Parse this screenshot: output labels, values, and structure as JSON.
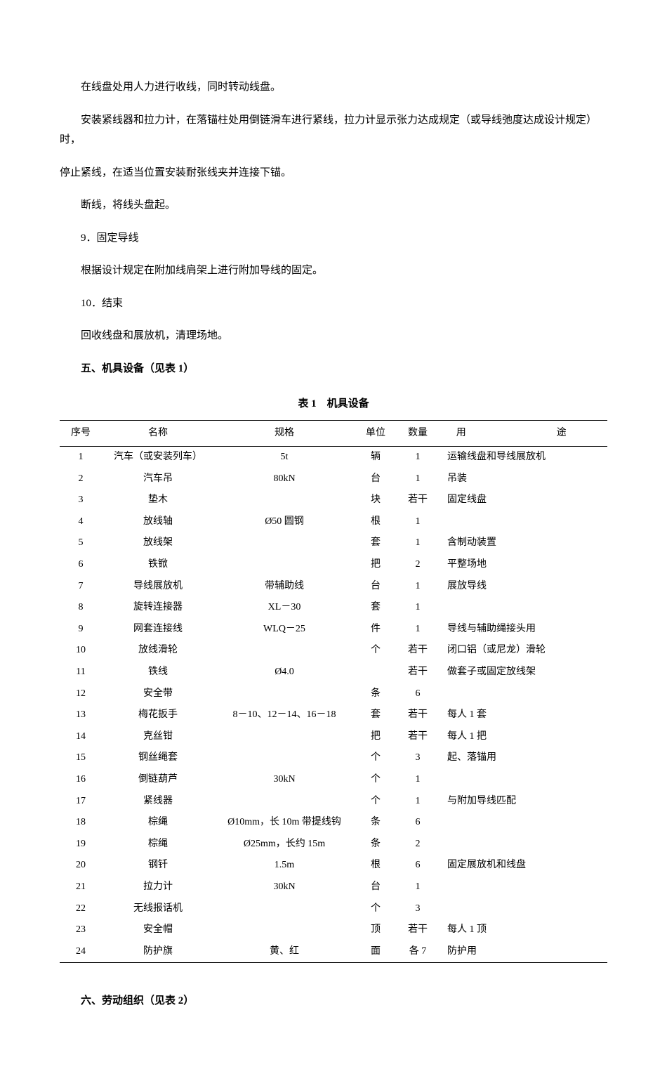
{
  "paragraphs": {
    "p1": "在线盘处用人力进行收线，同时转动线盘。",
    "p2": "安装紧线器和拉力计，在落锚柱处用倒链滑车进行紧线，拉力计显示张力达成规定（或导线弛度达成设计规定）时，",
    "p3": "停止紧线，在适当位置安装耐张线夹并连接下锚。",
    "p4": "断线，将线头盘起。",
    "p5": "9．固定导线",
    "p6": "根据设计规定在附加线肩架上进行附加导线的固定。",
    "p7": "10．结束",
    "p8": "回收线盘和展放机，清理场地。"
  },
  "section5": "五、机具设备（见表 1）",
  "table1": {
    "title": "表 1　机具设备",
    "columns": [
      "序号",
      "名称",
      "规格",
      "单位",
      "数量",
      "用途"
    ],
    "use_header_display": "用　　途",
    "rows": [
      [
        "1",
        "汽车（或安装列车）",
        "5t",
        "辆",
        "1",
        "运输线盘和导线展放机"
      ],
      [
        "2",
        "汽车吊",
        "80kN",
        "台",
        "1",
        "吊装"
      ],
      [
        "3",
        "垫木",
        "",
        "块",
        "若干",
        "固定线盘"
      ],
      [
        "4",
        "放线轴",
        "Ø50 圆钢",
        "根",
        "1",
        ""
      ],
      [
        "5",
        "放线架",
        "",
        "套",
        "1",
        "含制动装置"
      ],
      [
        "6",
        "铁锨",
        "",
        "把",
        "2",
        "平整场地"
      ],
      [
        "7",
        "导线展放机",
        "带辅助线",
        "台",
        "1",
        "展放导线"
      ],
      [
        "8",
        "旋转连接器",
        "XL－30",
        "套",
        "1",
        ""
      ],
      [
        "9",
        "网套连接线",
        "WLQ－25",
        "件",
        "1",
        "导线与辅助绳接头用"
      ],
      [
        "10",
        "放线滑轮",
        "",
        "个",
        "若干",
        "闭口铝（或尼龙）滑轮"
      ],
      [
        "11",
        "铁线",
        "Ø4.0",
        "",
        "若干",
        "做套子或固定放线架"
      ],
      [
        "12",
        "安全带",
        "",
        "条",
        "6",
        ""
      ],
      [
        "13",
        "梅花扳手",
        "8－10、12－14、16－18",
        "套",
        "若干",
        "每人 1 套"
      ],
      [
        "14",
        "克丝钳",
        "",
        "把",
        "若干",
        "每人 1 把"
      ],
      [
        "15",
        "钢丝绳套",
        "",
        "个",
        "3",
        "起、落锚用"
      ],
      [
        "16",
        "倒链葫芦",
        "30kN",
        "个",
        "1",
        ""
      ],
      [
        "17",
        "紧线器",
        "",
        "个",
        "1",
        "与附加导线匹配"
      ],
      [
        "18",
        "棕绳",
        "Ø10mm，长 10m 带提线钩",
        "条",
        "6",
        ""
      ],
      [
        "19",
        "棕绳",
        "Ø25mm，长约 15m",
        "条",
        "2",
        ""
      ],
      [
        "20",
        "钢钎",
        "1.5m",
        "根",
        "6",
        "固定展放机和线盘"
      ],
      [
        "21",
        "拉力计",
        "30kN",
        "台",
        "1",
        ""
      ],
      [
        "22",
        "无线报话机",
        "",
        "个",
        "3",
        ""
      ],
      [
        "23",
        "安全帽",
        "",
        "顶",
        "若干",
        "每人 1 顶"
      ],
      [
        "24",
        "防护旗",
        "黄、红",
        "面",
        "各 7",
        "防护用"
      ]
    ]
  },
  "section6": "六、劳动组织（见表 2）",
  "styling": {
    "background_color": "#ffffff",
    "text_color": "#000000",
    "font_family": "SimSun",
    "body_font_size": 15,
    "table_font_size": 14,
    "border_color": "#000000",
    "header_border_width": 1.5,
    "row_border_width": 1
  }
}
